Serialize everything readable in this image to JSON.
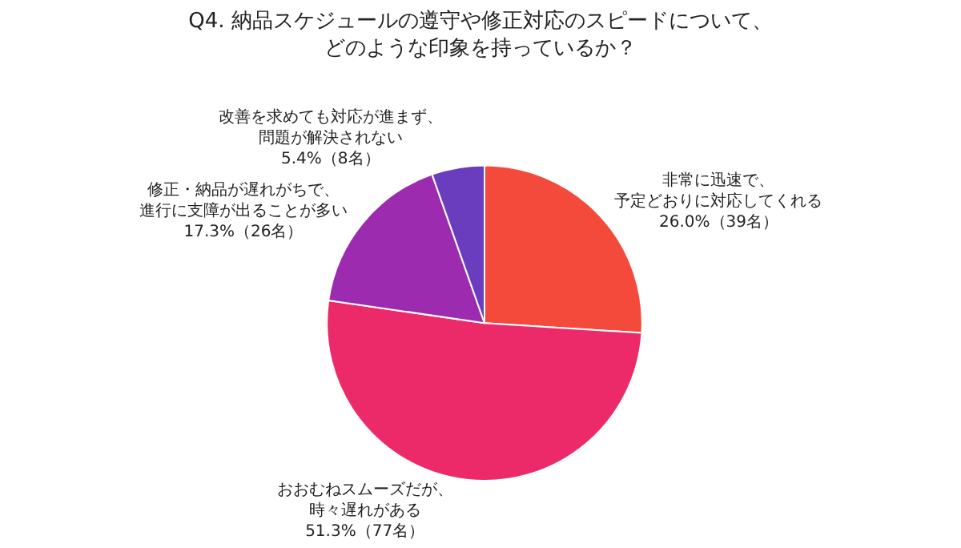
{
  "chart_data": {
    "type": "pie",
    "title": "Q4. 納品スケジュールの遵守や修正対応のスピードについて、どのような印象を持っているか？",
    "categories": [
      "非常に迅速で、予定どおりに対応してくれる",
      "おおむねスムーズだが、時々遅れがある",
      "修正・納品が遅れがちで、進行に支障が出ることが多い",
      "改善を求めても対応が進まず、問題が解決されない"
    ],
    "values": [
      26.0,
      51.3,
      17.3,
      5.4
    ],
    "value_labels": [
      "26.0%（39名）",
      "51.3%（77名）",
      "17.3%（26名）",
      "5.4%（8名）"
    ],
    "colors": [
      "#f44a3b",
      "#ec2a6a",
      "#9c2bb0",
      "#6a3dbf"
    ],
    "legend": false
  }
}
